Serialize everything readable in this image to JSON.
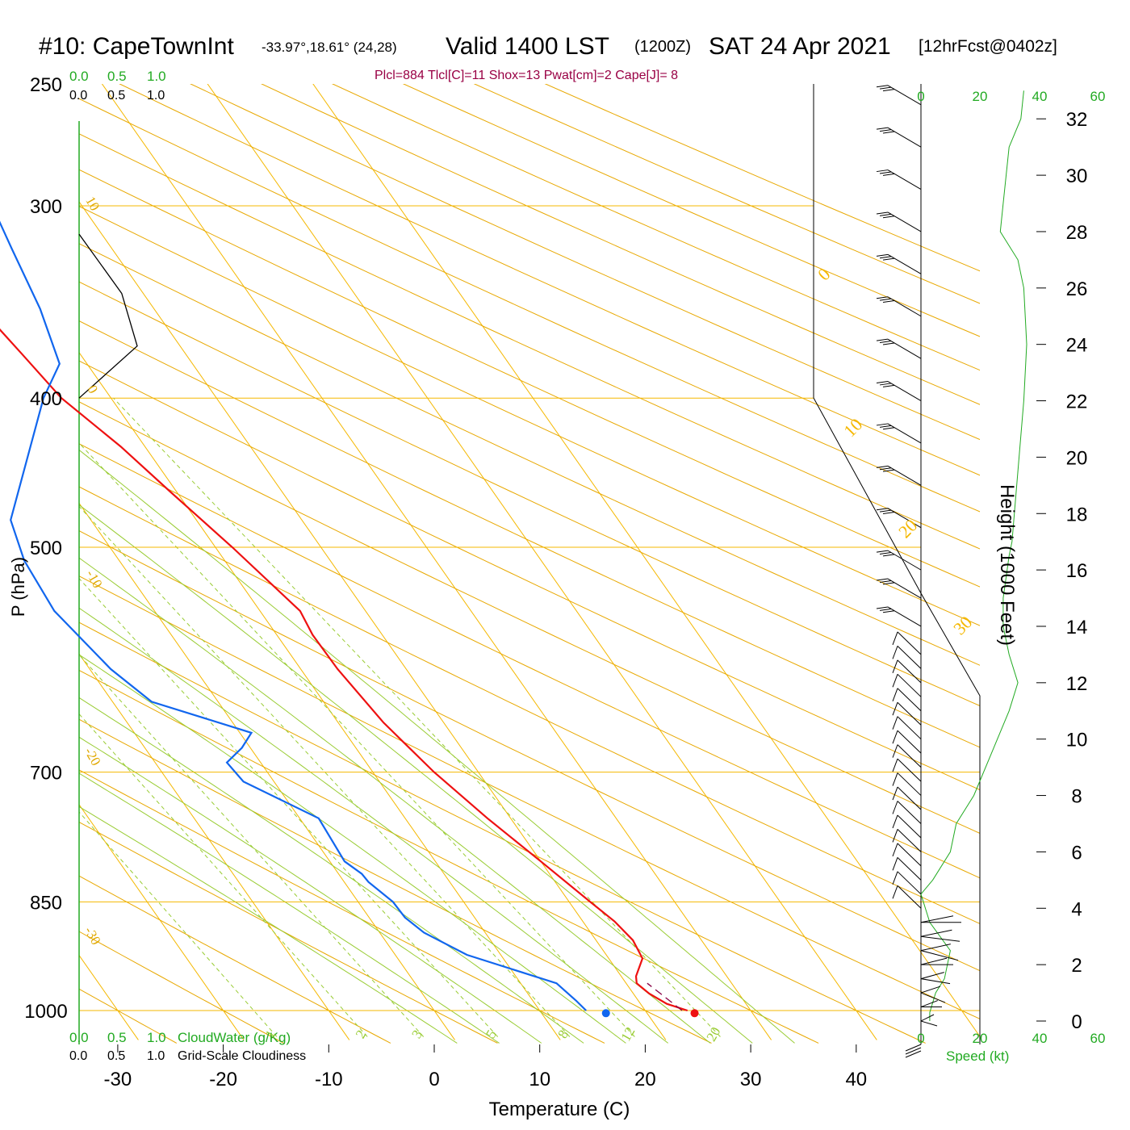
{
  "header": {
    "station": "#10: CapeTownInt",
    "coords": "-33.97°,18.61° (24,28)",
    "valid": "Valid 1400 LST",
    "zulu": "(1200Z)",
    "date": "SAT 24 Apr 2021",
    "forecast": "[12hrFcst@0402z]",
    "indices": "Plcl=884 Tlcl[C]=11 Shox=13 Pwat[cm]=2 Cape[J]= 8"
  },
  "colors": {
    "temperature": "#ee1111",
    "dewpoint": "#1166ee",
    "isotherm": "#f5b800",
    "dry_adiabat": "#e8a800",
    "moist_adiabat": "#99cc33",
    "mixing_ratio": "#99cc33",
    "cloud_axis": "#22aa22",
    "wind_speed": "#22aa22",
    "parcel": "#880044"
  },
  "chart_data": {
    "type": "skew-t",
    "xlabel": "Temperature (C)",
    "ylabel": "P (hPa)",
    "right_axis_label": "Height (1000 Feet)",
    "x_ticks": [
      -30,
      -20,
      -10,
      0,
      10,
      20,
      30,
      40
    ],
    "pressure_labels": [
      250,
      300,
      400,
      500,
      700,
      850,
      1000
    ],
    "pressure_range": [
      250,
      1040
    ],
    "height_ticks": [
      0,
      2,
      4,
      6,
      8,
      10,
      12,
      14,
      16,
      18,
      20,
      22,
      24,
      26,
      28,
      30,
      32
    ],
    "isotherm_labels": [
      "10",
      "0",
      "-10",
      "-20",
      "-30",
      "0",
      "10",
      "20",
      "30"
    ],
    "mixing_ratio_labels": [
      "1",
      "2",
      "3",
      "5",
      "8",
      "12",
      "20"
    ],
    "mixing_ratio_values": [
      1,
      2,
      3,
      5,
      8,
      12,
      20
    ],
    "cloud_axis_top_green": [
      "0.0",
      "0.5",
      "1.0"
    ],
    "cloud_axis_top_black": [
      "0.0",
      "0.5",
      "1.0"
    ],
    "cloud_axis_bottom_green": [
      "0.0",
      "0.5",
      "1.0"
    ],
    "cloud_axis_bottom_black": [
      "0.0",
      "0.5",
      "1.0"
    ],
    "cloud_water_label": "CloudWater (g/Kg)",
    "cloudiness_label": "Grid-Scale Cloudiness",
    "speed_ticks": [
      "0",
      "20",
      "40",
      "60"
    ],
    "speed_label": "Speed (kt)",
    "temperature_profile": [
      [
        1000,
        24.0
      ],
      [
        990,
        22.5
      ],
      [
        975,
        21.5
      ],
      [
        960,
        21.0
      ],
      [
        950,
        21.4
      ],
      [
        925,
        23.2
      ],
      [
        900,
        23.5
      ],
      [
        875,
        23.0
      ],
      [
        850,
        22.0
      ],
      [
        800,
        20.0
      ],
      [
        750,
        17.8
      ],
      [
        700,
        15.8
      ],
      [
        650,
        14.3
      ],
      [
        600,
        13.5
      ],
      [
        570,
        13.4
      ],
      [
        550,
        13.8
      ],
      [
        500,
        11.6
      ],
      [
        460,
        9.4
      ],
      [
        430,
        7.7
      ],
      [
        400,
        5.3
      ],
      [
        375,
        4.5
      ],
      [
        350,
        3.6
      ],
      [
        325,
        2.5
      ],
      [
        300,
        0.7
      ],
      [
        280,
        -0.9
      ],
      [
        265,
        -2.2
      ]
    ],
    "dewpoint_profile": [
      [
        1000,
        14.4
      ],
      [
        985,
        14.1
      ],
      [
        960,
        13.4
      ],
      [
        920,
        6.8
      ],
      [
        890,
        4.2
      ],
      [
        870,
        3.4
      ],
      [
        850,
        3.3
      ],
      [
        825,
        2.3
      ],
      [
        815,
        2.2
      ],
      [
        800,
        1.4
      ],
      [
        750,
        1.8
      ],
      [
        710,
        -2.9
      ],
      [
        690,
        -3.2
      ],
      [
        675,
        -0.8
      ],
      [
        660,
        1.1
      ],
      [
        630,
        -6.3
      ],
      [
        600,
        -8.0
      ],
      [
        550,
        -9.5
      ],
      [
        510,
        -9.0
      ],
      [
        480,
        -7.6
      ],
      [
        400,
        3.6
      ],
      [
        380,
        7.4
      ],
      [
        350,
        9.2
      ],
      [
        320,
        10.5
      ],
      [
        300,
        11.5
      ],
      [
        287,
        12.1
      ],
      [
        275,
        12.0
      ]
    ],
    "surface_temperature": 24.5,
    "surface_dewpoint": 16.1,
    "cloudiness_profile": [
      [
        313,
        0.0
      ],
      [
        342,
        0.55
      ],
      [
        370,
        0.75
      ],
      [
        400,
        0.0
      ]
    ],
    "wind_speed_profile": [
      [
        0.0,
        3
      ],
      [
        0.3,
        3
      ],
      [
        1.0,
        5
      ],
      [
        1.5,
        8
      ],
      [
        2.5,
        10
      ],
      [
        3.5,
        3
      ],
      [
        4.5,
        0
      ],
      [
        5.0,
        4
      ],
      [
        6.0,
        10
      ],
      [
        7.0,
        12
      ],
      [
        8.0,
        18
      ],
      [
        9.5,
        24
      ],
      [
        11.0,
        30
      ],
      [
        12.0,
        33
      ],
      [
        13.0,
        30
      ],
      [
        14.0,
        28
      ],
      [
        15.0,
        28
      ],
      [
        16.5,
        30
      ],
      [
        17.0,
        31
      ],
      [
        19.5,
        33
      ],
      [
        22.0,
        35
      ],
      [
        24.0,
        36
      ],
      [
        26.0,
        35
      ],
      [
        27.0,
        33
      ],
      [
        28.0,
        27
      ],
      [
        29.0,
        28
      ],
      [
        31.0,
        30
      ],
      [
        32.0,
        34
      ],
      [
        33.0,
        35
      ]
    ],
    "wind_barbs_heights": [
      32.5,
      31.0,
      29.5,
      28.0,
      26.5,
      25.0,
      23.5,
      22.0,
      20.5,
      19.0,
      17.5,
      16.0,
      15.0,
      14.0,
      13.0,
      12.5,
      12.0,
      11.5,
      11.0,
      10.5,
      10.0,
      9.5,
      9.0,
      8.5,
      8.0,
      7.5,
      7.0,
      6.5,
      6.0,
      5.5,
      5.0,
      4.5,
      4.0
    ],
    "lower_wind_barbs_heights": [
      3.5,
      3.0,
      2.5,
      2.0,
      1.5,
      1.0,
      0.5,
      0.0
    ]
  }
}
